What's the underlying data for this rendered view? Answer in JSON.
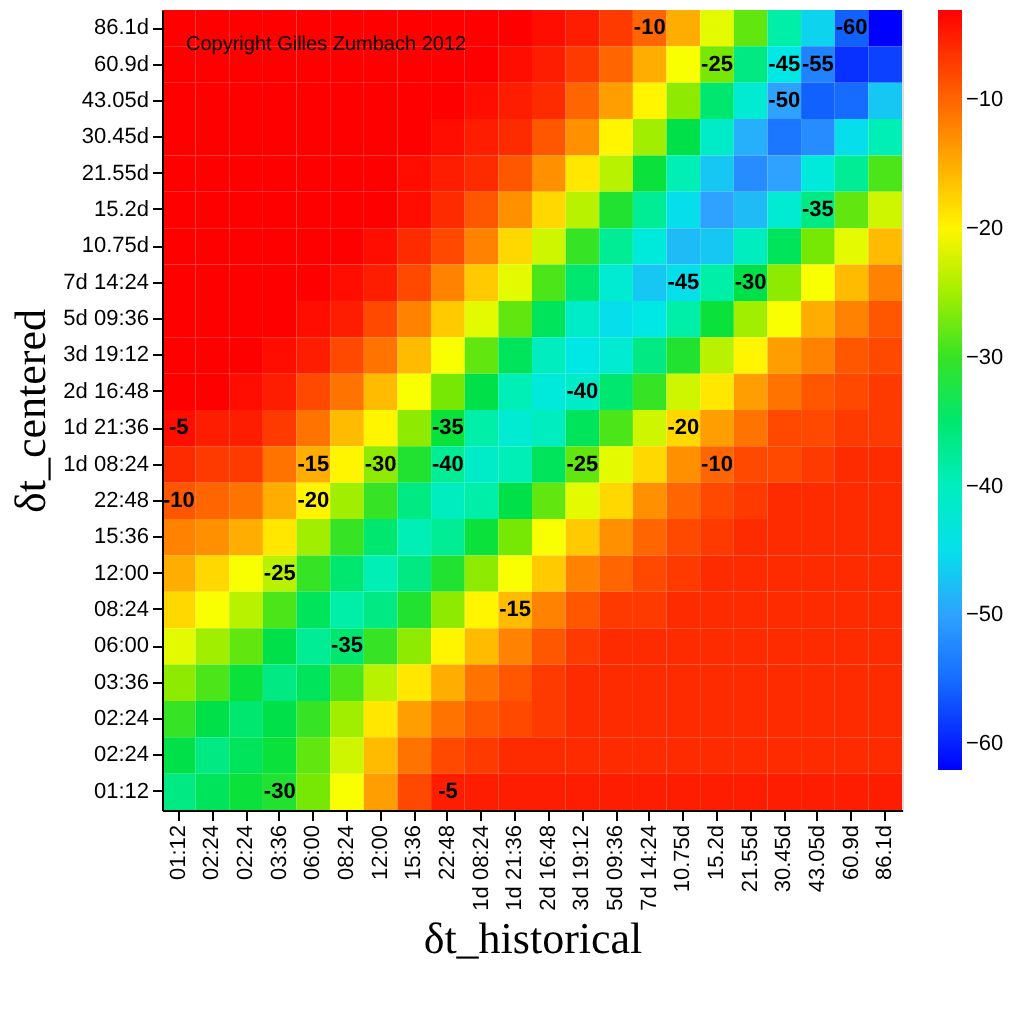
{
  "chart_data": {
    "type": "heatmap",
    "xlabel": "δt_historical",
    "ylabel": "δt_centered",
    "categories": [
      "01:12",
      "02:24",
      "02:24",
      "03:36",
      "06:00",
      "08:24",
      "12:00",
      "15:36",
      "22:48",
      "1d 08:24",
      "1d 21:36",
      "2d 16:48",
      "3d 19:12",
      "5d 09:36",
      "7d 14:24",
      "10.75d",
      "15.2d",
      "21.55d",
      "30.45d",
      "43.05d",
      "60.9d",
      "86.1d"
    ],
    "y_categories": [
      "86.1d",
      "60.9d",
      "43.05d",
      "30.45d",
      "21.55d",
      "15.2d",
      "10.75d",
      "7d 14:24",
      "5d 09:36",
      "3d 19:12",
      "2d 16:48",
      "1d 21:36",
      "1d 08:24",
      "22:48",
      "15:36",
      "12:00",
      "08:24",
      "06:00",
      "03:36",
      "02:24",
      "02:24",
      "01:12"
    ],
    "clim": [
      -62,
      -3
    ],
    "cticks": [
      -60,
      -50,
      -40,
      -30,
      -20,
      -10
    ],
    "colors": [
      "#0000ff",
      "#1060ff",
      "#30a0ff",
      "#00e8e8",
      "#00f0b0",
      "#00e040",
      "#80e800",
      "#ffff00",
      "#ffaa00",
      "#ff5500",
      "#ff0000"
    ],
    "cells": [
      [
        -3,
        -3,
        -3,
        -3,
        -3,
        -3,
        -3,
        -3,
        -3,
        -3,
        -3,
        -4,
        -5,
        -7,
        -10,
        -15,
        -22,
        -28,
        -38,
        -46,
        -56,
        -62
      ],
      [
        -3,
        -3,
        -3,
        -3,
        -3,
        -3,
        -3,
        -3,
        -3,
        -3,
        -4,
        -5,
        -7,
        -10,
        -15,
        -21,
        -27,
        -36,
        -44,
        -53,
        -59,
        -58
      ],
      [
        -3,
        -3,
        -3,
        -3,
        -3,
        -3,
        -3,
        -3,
        -3,
        -4,
        -5,
        -6,
        -10,
        -14,
        -20,
        -26,
        -35,
        -42,
        -50,
        -56,
        -55,
        -47
      ],
      [
        -3,
        -3,
        -3,
        -3,
        -3,
        -3,
        -3,
        -3,
        -4,
        -5,
        -6,
        -9,
        -13,
        -20,
        -25,
        -33,
        -41,
        -49,
        -54,
        -52,
        -45,
        -39
      ],
      [
        -3,
        -3,
        -3,
        -3,
        -3,
        -3,
        -3,
        -4,
        -5,
        -6,
        -9,
        -13,
        -19,
        -24,
        -32,
        -39,
        -47,
        -52,
        -50,
        -43,
        -37,
        -29
      ],
      [
        -3,
        -3,
        -3,
        -3,
        -3,
        -3,
        -3,
        -4,
        -6,
        -9,
        -13,
        -18,
        -24,
        -31,
        -37,
        -45,
        -50,
        -48,
        -42,
        -36,
        -28,
        -23
      ],
      [
        -3,
        -3,
        -3,
        -3,
        -3,
        -3,
        -4,
        -6,
        -8,
        -12,
        -18,
        -23,
        -30,
        -37,
        -43,
        -48,
        -47,
        -40,
        -34,
        -27,
        -22,
        -16
      ],
      [
        -3,
        -3,
        -3,
        -3,
        -3,
        -4,
        -5,
        -8,
        -12,
        -17,
        -22,
        -29,
        -35,
        -42,
        -47,
        -45,
        -38,
        -33,
        -26,
        -21,
        -16,
        -12
      ],
      [
        -3,
        -3,
        -3,
        -3,
        -4,
        -5,
        -8,
        -12,
        -17,
        -22,
        -28,
        -34,
        -41,
        -45,
        -44,
        -38,
        -32,
        -25,
        -21,
        -15,
        -12,
        -9
      ],
      [
        -3,
        -3,
        -3,
        -4,
        -5,
        -8,
        -11,
        -16,
        -21,
        -28,
        -34,
        -40,
        -44,
        -42,
        -36,
        -31,
        -24,
        -20,
        -14,
        -12,
        -9,
        -8
      ],
      [
        -3,
        -3,
        -4,
        -5,
        -8,
        -11,
        -16,
        -21,
        -27,
        -33,
        -39,
        -43,
        -41,
        -35,
        -30,
        -23,
        -19,
        -14,
        -11,
        -9,
        -8,
        -7
      ],
      [
        -4,
        -5,
        -5,
        -7,
        -11,
        -16,
        -20,
        -26,
        -32,
        -38,
        -42,
        -40,
        -34,
        -29,
        -23,
        -18,
        -14,
        -11,
        -8,
        -8,
        -7,
        -7
      ],
      [
        -6,
        -7,
        -7,
        -11,
        -15,
        -20,
        -26,
        -31,
        -37,
        -41,
        -39,
        -34,
        -28,
        -22,
        -18,
        -13,
        -10,
        -8,
        -8,
        -7,
        -6,
        -6
      ],
      [
        -9,
        -10,
        -11,
        -15,
        -20,
        -25,
        -30,
        -36,
        -40,
        -38,
        -33,
        -28,
        -22,
        -18,
        -13,
        -10,
        -8,
        -7,
        -6,
        -6,
        -6,
        -6
      ],
      [
        -12,
        -13,
        -15,
        -19,
        -25,
        -30,
        -35,
        -39,
        -37,
        -32,
        -27,
        -21,
        -17,
        -13,
        -10,
        -8,
        -7,
        -6,
        -6,
        -6,
        -6,
        -6
      ],
      [
        -15,
        -18,
        -21,
        -24,
        -30,
        -35,
        -39,
        -36,
        -31,
        -26,
        -21,
        -17,
        -12,
        -10,
        -8,
        -7,
        -6,
        -6,
        -6,
        -6,
        -6,
        -6
      ],
      [
        -18,
        -21,
        -24,
        -29,
        -34,
        -38,
        -36,
        -31,
        -26,
        -20,
        -16,
        -12,
        -9,
        -7,
        -7,
        -6,
        -6,
        -6,
        -6,
        -6,
        -6,
        -6
      ],
      [
        -22,
        -25,
        -28,
        -33,
        -37,
        -35,
        -30,
        -26,
        -20,
        -16,
        -12,
        -9,
        -7,
        -6,
        -6,
        -6,
        -6,
        -6,
        -6,
        -6,
        -6,
        -6
      ],
      [
        -26,
        -29,
        -32,
        -36,
        -34,
        -29,
        -24,
        -19,
        -15,
        -11,
        -9,
        -7,
        -6,
        -6,
        -6,
        -6,
        -6,
        -6,
        -6,
        -6,
        -6,
        -6
      ],
      [
        -30,
        -33,
        -35,
        -33,
        -30,
        -25,
        -19,
        -14,
        -11,
        -9,
        -8,
        -7,
        -6,
        -6,
        -6,
        -6,
        -6,
        -6,
        -6,
        -6,
        -6,
        -6
      ],
      [
        -33,
        -36,
        -34,
        -32,
        -28,
        -23,
        -16,
        -11,
        -8,
        -7,
        -6,
        -6,
        -6,
        -6,
        -6,
        -6,
        -6,
        -6,
        -6,
        -6,
        -6,
        -6
      ],
      [
        -36,
        -34,
        -32,
        -31,
        -27,
        -21,
        -14,
        -8,
        -5,
        -5,
        -5,
        -5,
        -5,
        -5,
        -5,
        -5,
        -5,
        -5,
        -5,
        -5,
        -5,
        -5
      ]
    ],
    "annotations": [
      "Copyright Gilles Zumbach 2012",
      "-5",
      "-10",
      "-15",
      "-20",
      "-25",
      "-30",
      "-40",
      "-35",
      "-35",
      "-30",
      "-5",
      "-15",
      "-25",
      "-20",
      "-10",
      "-40",
      "-45",
      "-30",
      "-35",
      "-10",
      "-25",
      "-45",
      "-50",
      "-55",
      "-60"
    ]
  }
}
